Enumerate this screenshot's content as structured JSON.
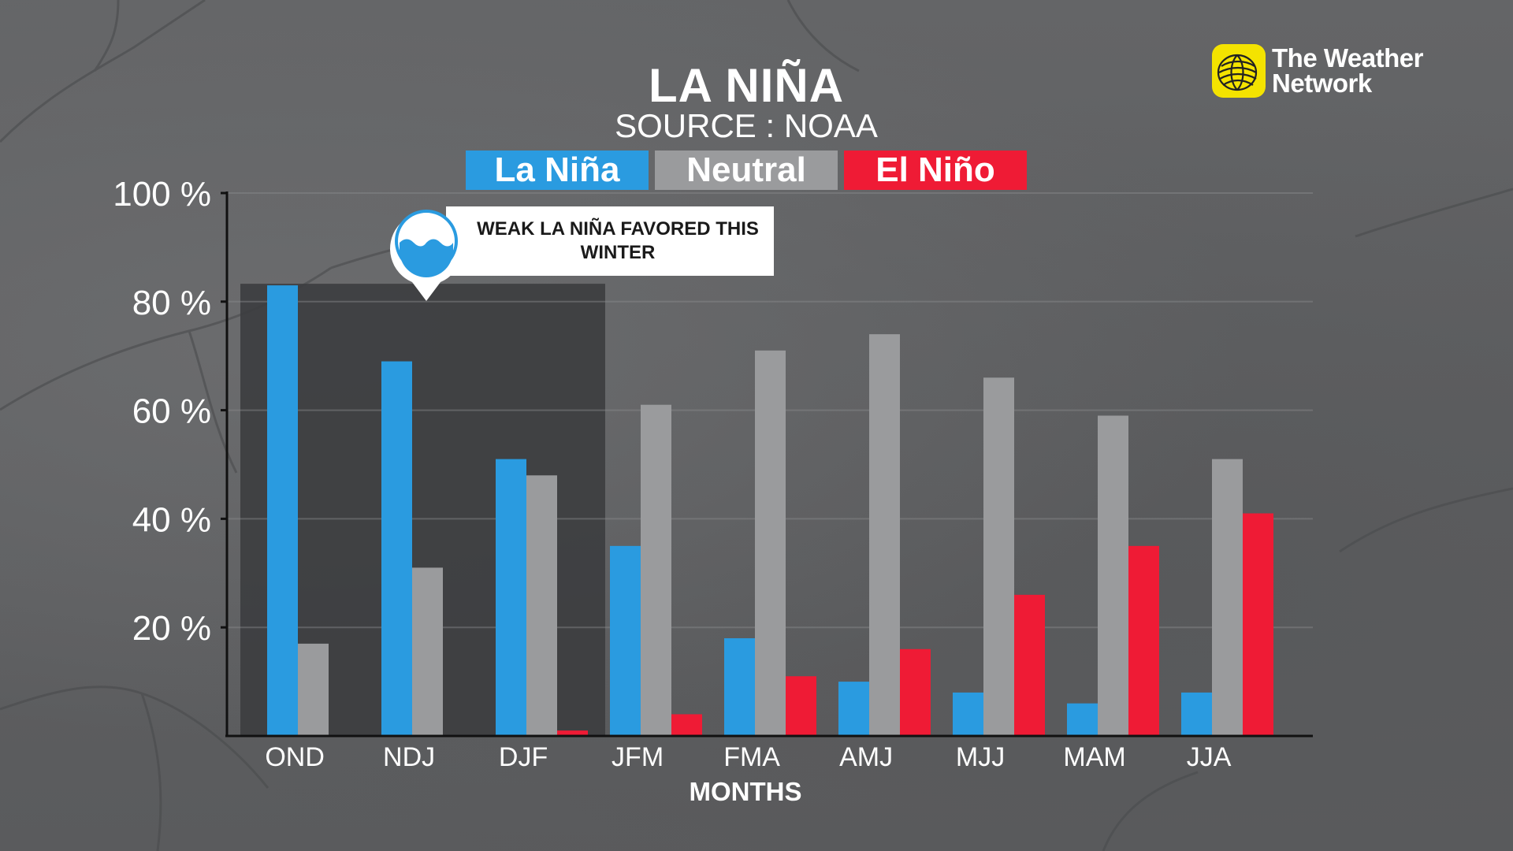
{
  "chart_data": {
    "type": "bar",
    "title": "LA NIÑA",
    "subtitle": "SOURCE : NOAA",
    "xlabel": "MONTHS",
    "ylabel": "",
    "ylim": [
      0,
      100
    ],
    "yticks": [
      20,
      40,
      60,
      80,
      100
    ],
    "ytick_labels": [
      "20 %",
      "40 %",
      "60 %",
      "80 %",
      "100 %"
    ],
    "grid": true,
    "legend_placement": "top-center",
    "categories": [
      "OND",
      "NDJ",
      "DJF",
      "JFM",
      "FMA",
      "AMJ",
      "MJJ",
      "MAM",
      "JJA"
    ],
    "series": [
      {
        "name": "La Niña",
        "color": "#2a9be0",
        "values": [
          83,
          69,
          51,
          35,
          18,
          10,
          8,
          6,
          8
        ]
      },
      {
        "name": "Neutral",
        "color": "#9a9b9d",
        "values": [
          17,
          31,
          48,
          61,
          71,
          74,
          66,
          59,
          51
        ]
      },
      {
        "name": "El Niño",
        "color": "#ef1b35",
        "values": [
          0,
          0,
          1,
          4,
          11,
          16,
          26,
          35,
          41
        ]
      }
    ],
    "highlight_categories": [
      "OND",
      "NDJ",
      "DJF"
    ],
    "annotation": "WEAK LA NIÑA FAVORED THIS WINTER"
  },
  "logo": {
    "line1": "The Weather",
    "line2": "Network",
    "icon": "globe-icon",
    "color": "#f4e300"
  },
  "callout_icon": "water-wave-icon"
}
